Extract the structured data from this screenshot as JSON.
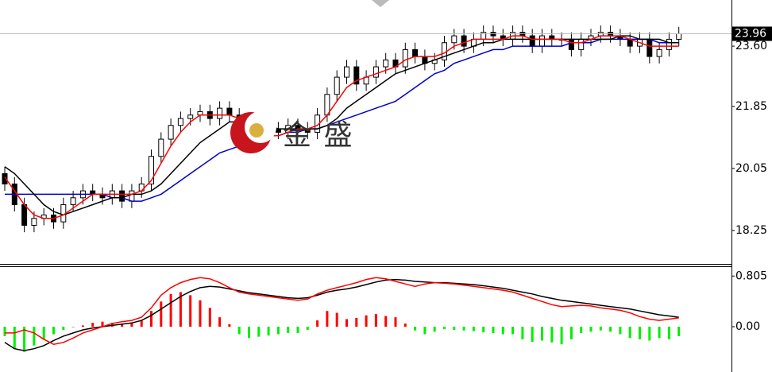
{
  "chart_data": [
    {
      "type": "candlestick",
      "watermark": "金 盛",
      "last_price": 23.96,
      "ylim": [
        17.28,
        24.94
      ],
      "yticks": [
        18.25,
        20.05,
        21.85,
        {
          "value": 23.6,
          "label": "23.60"
        }
      ],
      "up_color": "#ffffff",
      "down_color": "#000000",
      "open": [
        19.9,
        19.6,
        19.0,
        18.4,
        18.6,
        18.7,
        18.5,
        19.0,
        19.2,
        19.4,
        19.3,
        19.2,
        19.4,
        19.1,
        19.4,
        19.6,
        20.4,
        20.9,
        21.3,
        21.5,
        21.6,
        21.7,
        21.5,
        21.8,
        21.6,
        21.2,
        20.9,
        21.0,
        21.2,
        21.1,
        21.3,
        21.2,
        21.1,
        21.6,
        22.2,
        22.7,
        23.0,
        22.5,
        22.7,
        23.0,
        23.2,
        23.0,
        23.5,
        23.3,
        23.1,
        23.2,
        23.7,
        23.9,
        23.6,
        23.8,
        24.0,
        23.9,
        23.8,
        24.0,
        23.9,
        23.6,
        23.9,
        23.8,
        23.8,
        23.5,
        23.8,
        23.9,
        24.0,
        23.9,
        23.8,
        23.6,
        23.8,
        23.3,
        23.5,
        23.8
      ],
      "high": [
        20.1,
        19.8,
        19.2,
        18.8,
        18.9,
        18.9,
        19.2,
        19.4,
        19.6,
        19.6,
        19.5,
        19.6,
        19.6,
        19.6,
        19.8,
        20.6,
        21.1,
        21.5,
        21.7,
        21.8,
        21.9,
        21.9,
        22.0,
        22.0,
        21.8,
        21.4,
        21.2,
        21.4,
        21.4,
        21.5,
        21.5,
        21.4,
        21.8,
        22.4,
        22.9,
        23.2,
        23.2,
        22.9,
        23.2,
        23.4,
        23.4,
        23.7,
        23.7,
        23.5,
        23.4,
        23.9,
        24.1,
        24.1,
        24.0,
        24.2,
        24.2,
        24.1,
        24.2,
        24.2,
        24.1,
        24.1,
        24.1,
        24.0,
        24.0,
        24.0,
        24.1,
        24.2,
        24.2,
        24.1,
        24.0,
        24.0,
        24.0,
        23.7,
        24.0,
        24.16
      ],
      "low": [
        19.4,
        18.8,
        18.2,
        18.2,
        18.4,
        18.3,
        18.3,
        18.8,
        19.0,
        19.1,
        19.0,
        19.0,
        18.9,
        18.9,
        19.2,
        19.4,
        20.2,
        20.7,
        21.1,
        21.3,
        21.4,
        21.3,
        21.3,
        21.4,
        21.0,
        20.7,
        20.7,
        20.8,
        20.9,
        20.9,
        21.0,
        20.9,
        20.9,
        21.4,
        22.0,
        22.5,
        22.3,
        22.3,
        22.5,
        22.8,
        22.8,
        22.8,
        23.1,
        22.9,
        22.9,
        23.0,
        23.5,
        23.4,
        23.4,
        23.6,
        23.7,
        23.6,
        23.6,
        23.7,
        23.4,
        23.4,
        23.6,
        23.6,
        23.3,
        23.3,
        23.6,
        23.7,
        23.7,
        23.6,
        23.4,
        23.4,
        23.1,
        23.1,
        23.3,
        23.6
      ],
      "close": [
        19.6,
        19.0,
        18.4,
        18.6,
        18.7,
        18.5,
        19.0,
        19.2,
        19.4,
        19.3,
        19.2,
        19.4,
        19.1,
        19.4,
        19.6,
        20.4,
        20.9,
        21.3,
        21.5,
        21.6,
        21.7,
        21.5,
        21.8,
        21.6,
        21.2,
        20.9,
        21.0,
        21.2,
        21.1,
        21.3,
        21.2,
        21.1,
        21.6,
        22.2,
        22.7,
        23.0,
        22.5,
        22.7,
        23.0,
        23.2,
        23.0,
        23.5,
        23.3,
        23.1,
        23.2,
        23.7,
        23.9,
        23.6,
        23.8,
        24.0,
        23.9,
        23.8,
        24.0,
        23.9,
        23.6,
        23.9,
        23.8,
        23.8,
        23.5,
        23.8,
        23.9,
        24.0,
        23.9,
        23.8,
        23.6,
        23.8,
        23.3,
        23.5,
        23.8,
        23.96
      ],
      "series": [
        {
          "color": "#0000cc",
          "values": [
            19.3,
            19.3,
            19.3,
            19.3,
            19.3,
            19.3,
            19.3,
            19.3,
            19.3,
            19.3,
            19.3,
            19.2,
            19.2,
            19.1,
            19.1,
            19.2,
            19.3,
            19.5,
            19.7,
            19.9,
            20.1,
            20.3,
            20.5,
            20.6,
            20.7,
            20.8,
            20.9,
            21.0,
            21.0,
            21.1,
            21.1,
            21.2,
            21.2,
            21.3,
            21.4,
            21.5,
            21.6,
            21.7,
            21.8,
            21.9,
            22.0,
            22.2,
            22.4,
            22.6,
            22.8,
            22.9,
            23.1,
            23.2,
            23.3,
            23.4,
            23.5,
            23.5,
            23.6,
            23.6,
            23.6,
            23.6,
            23.6,
            23.6,
            23.7,
            23.7,
            23.7,
            23.8,
            23.8,
            23.8,
            23.8,
            23.8,
            23.8,
            23.7,
            23.7,
            23.7
          ]
        },
        {
          "color": "#000000",
          "values": [
            20.1,
            19.9,
            19.6,
            19.3,
            19.0,
            18.8,
            18.7,
            18.8,
            18.9,
            19.0,
            19.1,
            19.2,
            19.2,
            19.3,
            19.3,
            19.4,
            19.6,
            19.9,
            20.2,
            20.5,
            20.8,
            21.0,
            21.2,
            21.4,
            21.4,
            21.4,
            21.3,
            21.3,
            21.2,
            21.2,
            21.2,
            21.2,
            21.2,
            21.3,
            21.5,
            21.8,
            22.0,
            22.2,
            22.4,
            22.6,
            22.8,
            22.9,
            23.0,
            23.1,
            23.2,
            23.3,
            23.4,
            23.5,
            23.6,
            23.7,
            23.7,
            23.8,
            23.8,
            23.8,
            23.8,
            23.8,
            23.8,
            23.8,
            23.8,
            23.8,
            23.8,
            23.8,
            23.8,
            23.9,
            23.9,
            23.8,
            23.8,
            23.8,
            23.7,
            23.7
          ]
        },
        {
          "color": "#ff0000",
          "values": [
            19.8,
            19.4,
            19.0,
            18.7,
            18.6,
            18.6,
            18.7,
            18.9,
            19.1,
            19.3,
            19.3,
            19.3,
            19.3,
            19.3,
            19.4,
            19.7,
            20.2,
            20.7,
            21.1,
            21.4,
            21.6,
            21.6,
            21.6,
            21.6,
            21.5,
            21.3,
            21.1,
            21.0,
            21.0,
            21.1,
            21.2,
            21.2,
            21.3,
            21.6,
            22.0,
            22.4,
            22.6,
            22.7,
            22.8,
            22.9,
            23.0,
            23.2,
            23.3,
            23.3,
            23.3,
            23.4,
            23.6,
            23.7,
            23.8,
            23.8,
            23.8,
            23.8,
            23.9,
            23.9,
            23.8,
            23.8,
            23.8,
            23.8,
            23.7,
            23.7,
            23.8,
            23.9,
            23.9,
            23.9,
            23.8,
            23.7,
            23.6,
            23.6,
            23.6,
            23.6
          ]
        }
      ]
    },
    {
      "type": "macd",
      "ylim": [
        -0.72,
        0.96
      ],
      "yticks": [
        0.805,
        {
          "value": 0,
          "label": "0.00"
        }
      ],
      "up_color": "#ff0000",
      "down_color": "#00ee00",
      "histogram": [
        -0.15,
        -0.35,
        -0.4,
        -0.3,
        -0.2,
        -0.12,
        -0.05,
        0.0,
        0.02,
        0.06,
        0.08,
        0.06,
        0.04,
        0.06,
        0.1,
        0.25,
        0.4,
        0.52,
        0.55,
        0.5,
        0.42,
        0.3,
        0.15,
        0.04,
        -0.12,
        -0.18,
        -0.16,
        -0.14,
        -0.12,
        -0.1,
        -0.1,
        -0.05,
        0.1,
        0.25,
        0.22,
        0.12,
        0.14,
        0.18,
        0.2,
        0.17,
        0.15,
        0.05,
        -0.06,
        -0.12,
        -0.08,
        -0.04,
        -0.05,
        -0.06,
        -0.07,
        -0.09,
        -0.1,
        -0.12,
        -0.12,
        -0.2,
        -0.24,
        -0.22,
        -0.25,
        -0.28,
        -0.2,
        -0.1,
        -0.08,
        -0.06,
        -0.08,
        -0.12,
        -0.18,
        -0.2,
        -0.22,
        -0.18,
        -0.2,
        -0.15
      ],
      "series": [
        {
          "color": "#000000",
          "values": [
            -0.25,
            -0.35,
            -0.38,
            -0.35,
            -0.3,
            -0.22,
            -0.15,
            -0.1,
            -0.05,
            -0.02,
            0.0,
            0.02,
            0.04,
            0.06,
            0.1,
            0.18,
            0.28,
            0.38,
            0.48,
            0.56,
            0.62,
            0.64,
            0.63,
            0.6,
            0.57,
            0.54,
            0.52,
            0.5,
            0.48,
            0.46,
            0.45,
            0.46,
            0.5,
            0.55,
            0.58,
            0.6,
            0.63,
            0.67,
            0.71,
            0.74,
            0.75,
            0.74,
            0.72,
            0.71,
            0.7,
            0.7,
            0.69,
            0.68,
            0.67,
            0.65,
            0.63,
            0.61,
            0.58,
            0.55,
            0.52,
            0.48,
            0.45,
            0.42,
            0.4,
            0.38,
            0.36,
            0.34,
            0.32,
            0.3,
            0.28,
            0.25,
            0.22,
            0.19,
            0.17,
            0.15
          ]
        },
        {
          "color": "#ff0000",
          "values": [
            -0.1,
            -0.1,
            -0.05,
            -0.1,
            -0.2,
            -0.28,
            -0.25,
            -0.18,
            -0.1,
            -0.05,
            0.0,
            0.05,
            0.08,
            0.1,
            0.15,
            0.3,
            0.5,
            0.62,
            0.7,
            0.75,
            0.78,
            0.76,
            0.7,
            0.62,
            0.55,
            0.52,
            0.5,
            0.48,
            0.46,
            0.44,
            0.42,
            0.44,
            0.52,
            0.58,
            0.62,
            0.66,
            0.7,
            0.75,
            0.78,
            0.76,
            0.72,
            0.68,
            0.64,
            0.68,
            0.7,
            0.69,
            0.68,
            0.66,
            0.64,
            0.62,
            0.6,
            0.58,
            0.55,
            0.5,
            0.45,
            0.4,
            0.35,
            0.32,
            0.33,
            0.34,
            0.33,
            0.3,
            0.28,
            0.26,
            0.22,
            0.16,
            0.12,
            0.1,
            0.12,
            0.14
          ]
        }
      ]
    }
  ]
}
